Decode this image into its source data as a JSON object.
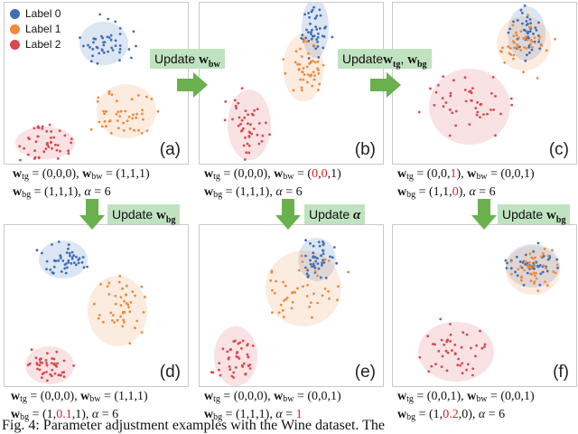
{
  "legend": [
    {
      "label": "Label 0",
      "color": "#3f6fb6"
    },
    {
      "label": "Label 1",
      "color": "#ee8a3c"
    },
    {
      "label": "Label 2",
      "color": "#d94a4f"
    }
  ],
  "panels": [
    {
      "label": "(a)",
      "formula_line1": "w_tg = (0,0,0), w_bw = (1,1,1)",
      "formula_line2": "w_bg = (1,1,1), α = 6"
    },
    {
      "label": "(b)",
      "formula_line1": "w_tg = (0,0,0), w_bw = (0,0,1)",
      "formula_line2": "w_bg = (1,1,1), α = 6"
    },
    {
      "label": "(c)",
      "formula_line1": "w_tg = (0,0,1), w_bw = (0,0,1)",
      "formula_line2": "w_bg = (1,1,0), α = 6"
    },
    {
      "label": "(d)",
      "formula_line1": "w_tg = (0,0,0), w_bw = (1,1,1)",
      "formula_line2": "w_bg = (1,0.1,1), α = 6"
    },
    {
      "label": "(e)",
      "formula_line1": "w_tg = (0,0,0), w_bw = (0,0,1)",
      "formula_line2": "w_bg = (1,1,1), α = 1"
    },
    {
      "label": "(f)",
      "formula_line1": "w_tg = (0,0,1), w_bw = (0,0,1)",
      "formula_line2": "w_bg = (1,0.2,0), α = 6"
    }
  ],
  "updates": {
    "a_to_b": "Update w_bw",
    "b_to_c": "Update w_tg, w_bg",
    "a_to_d": "Update w_bg",
    "b_to_e": "Update α",
    "c_to_f": "Update w_bg"
  },
  "caption": "Fig. 4: Parameter adjustment examples with the Wine dataset. The"
}
